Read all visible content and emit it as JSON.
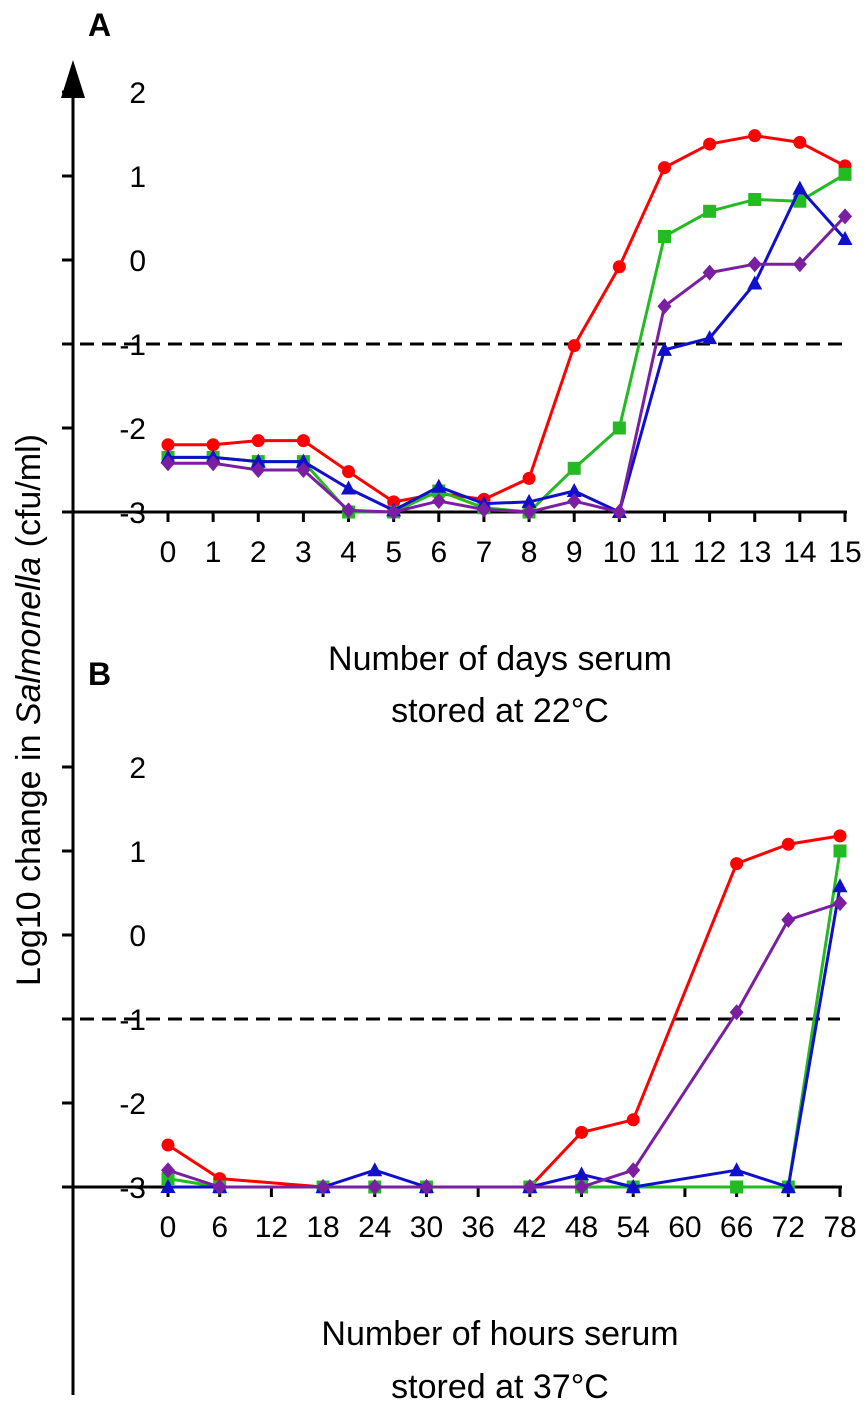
{
  "figure": {
    "ylabel_prefix": "Log10 change in ",
    "ylabel_italic": "Salmonella",
    "ylabel_suffix": " (cfu/ml)"
  },
  "chart_data": [
    {
      "panel_label": "A",
      "type": "line",
      "xlabel_line1": "Number of days serum",
      "xlabel_line2": "stored at 22°C",
      "x": [
        0,
        1,
        2,
        3,
        4,
        5,
        6,
        7,
        8,
        9,
        10,
        11,
        12,
        13,
        14,
        15
      ],
      "xticks": [
        "0",
        "1",
        "2",
        "3",
        "4",
        "5",
        "6",
        "7",
        "8",
        "9",
        "10",
        "11",
        "12",
        "13",
        "14",
        "15"
      ],
      "xlim": [
        0,
        15
      ],
      "ylim": [
        -3,
        2
      ],
      "yticks": [
        -3,
        -2,
        -1,
        0,
        1,
        2
      ],
      "reference_line": -1,
      "series": [
        {
          "color": "#ff0000",
          "marker": "circle",
          "values": [
            -2.2,
            -2.2,
            -2.15,
            -2.15,
            -2.52,
            -2.88,
            -2.78,
            -2.85,
            -2.6,
            -1.02,
            -0.08,
            1.1,
            1.38,
            1.48,
            1.4,
            1.12
          ]
        },
        {
          "color": "#22bb22",
          "marker": "square",
          "values": [
            -2.35,
            -2.35,
            -2.4,
            -2.4,
            -3.0,
            -3.0,
            -2.75,
            -2.95,
            -3.0,
            -2.48,
            -2.0,
            0.28,
            0.58,
            0.72,
            0.7,
            1.02
          ]
        },
        {
          "color": "#1010cc",
          "marker": "triangle",
          "values": [
            -2.35,
            -2.35,
            -2.4,
            -2.4,
            -2.72,
            -2.98,
            -2.7,
            -2.9,
            -2.88,
            -2.75,
            -3.0,
            -1.07,
            -0.93,
            -0.28,
            0.85,
            0.25
          ]
        },
        {
          "color": "#7b1fa2",
          "marker": "diamond",
          "values": [
            -2.42,
            -2.42,
            -2.5,
            -2.5,
            -2.98,
            -3.0,
            -2.87,
            -2.97,
            -3.0,
            -2.87,
            -3.0,
            -0.55,
            -0.15,
            -0.05,
            -0.05,
            0.52
          ]
        }
      ]
    },
    {
      "panel_label": "B",
      "type": "line",
      "xlabel_line1": "Number of hours serum",
      "xlabel_line2": "stored at 37°C",
      "x": [
        0,
        6,
        12,
        18,
        24,
        30,
        36,
        42,
        48,
        54,
        60,
        66,
        72,
        78
      ],
      "xticks": [
        "0",
        "6",
        "12",
        "18",
        "24",
        "30",
        "36",
        "42",
        "48",
        "54",
        "60",
        "66",
        "72",
        "78"
      ],
      "xlim": [
        0,
        78
      ],
      "ylim": [
        -3,
        2
      ],
      "yticks": [
        -3,
        -2,
        -1,
        0,
        1,
        2
      ],
      "reference_line": -1,
      "series": [
        {
          "color": "#ff0000",
          "marker": "circle",
          "x": [
            0,
            6,
            18,
            24,
            30,
            42,
            48,
            54,
            66,
            72,
            78
          ],
          "values": [
            -2.5,
            -2.9,
            -3.0,
            -3.0,
            -3.0,
            -3.0,
            -2.35,
            -2.2,
            0.85,
            1.08,
            1.18
          ]
        },
        {
          "color": "#22bb22",
          "marker": "square",
          "x": [
            0,
            6,
            18,
            24,
            30,
            42,
            48,
            54,
            66,
            72,
            78
          ],
          "values": [
            -2.9,
            -3.0,
            -3.0,
            -3.0,
            -3.0,
            -3.0,
            -3.0,
            -3.0,
            -3.0,
            -3.0,
            1.0
          ]
        },
        {
          "color": "#1010cc",
          "marker": "triangle",
          "x": [
            0,
            6,
            18,
            24,
            30,
            42,
            48,
            54,
            66,
            72,
            78
          ],
          "values": [
            -3.0,
            -3.0,
            -3.0,
            -2.8,
            -3.0,
            -3.0,
            -2.85,
            -3.0,
            -2.8,
            -3.0,
            0.58
          ]
        },
        {
          "color": "#7b1fa2",
          "marker": "diamond",
          "x": [
            0,
            6,
            18,
            24,
            30,
            42,
            48,
            54,
            66,
            72,
            78
          ],
          "values": [
            -2.8,
            -3.0,
            -3.0,
            -3.0,
            -3.0,
            -3.0,
            -3.0,
            -2.8,
            -0.92,
            0.18,
            0.38
          ]
        }
      ]
    }
  ]
}
